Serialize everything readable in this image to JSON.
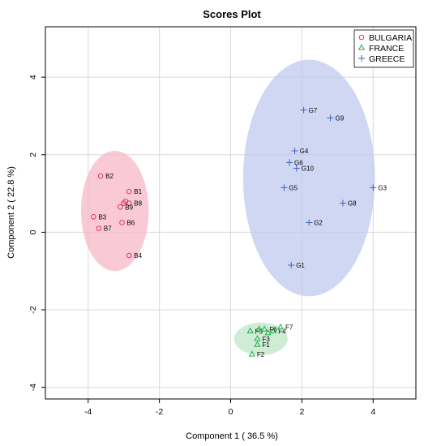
{
  "chart_data": {
    "type": "scatter",
    "title": "Scores Plot",
    "xlabel": "Component 1 ( 36.5 %)",
    "ylabel": "Component 2 ( 22.8 %)",
    "xlim": [
      -5.2,
      5.2
    ],
    "ylim": [
      -4.3,
      5.3
    ],
    "xticks": [
      -4,
      -2,
      0,
      2,
      4
    ],
    "yticks": [
      -4,
      -2,
      0,
      2,
      4
    ],
    "grid": true,
    "legend_position": "top-right",
    "series": [
      {
        "name": "BULGARIA",
        "marker": "circle",
        "color": "#e8305f",
        "ellipse_fill": "#f7b8c8",
        "ellipse": {
          "cx": -3.25,
          "cy": 0.55,
          "rx": 0.95,
          "ry": 1.55
        },
        "points": [
          {
            "label": "B1",
            "x": -2.85,
            "y": 1.05
          },
          {
            "label": "B2",
            "x": -3.65,
            "y": 1.45
          },
          {
            "label": "B3",
            "x": -3.85,
            "y": 0.4
          },
          {
            "label": "B4",
            "x": -2.85,
            "y": -0.6
          },
          {
            "label": "B6",
            "x": -3.05,
            "y": 0.25
          },
          {
            "label": "B7",
            "x": -3.7,
            "y": 0.1
          },
          {
            "label": "B8",
            "x": -2.85,
            "y": 0.75
          },
          {
            "label": "B9",
            "x": -3.1,
            "y": 0.65
          },
          {
            "label": "",
            "x": -2.95,
            "y": 0.8
          },
          {
            "label": "",
            "x": -3.0,
            "y": 0.75
          }
        ]
      },
      {
        "name": "FRANCE",
        "marker": "triangle",
        "color": "#22b04b",
        "ellipse_fill": "#bfe6c5",
        "ellipse": {
          "cx": 0.85,
          "cy": -2.75,
          "rx": 0.75,
          "ry": 0.42
        },
        "points": [
          {
            "label": "F1",
            "x": 0.75,
            "y": -2.9
          },
          {
            "label": "F2",
            "x": 0.6,
            "y": -3.15
          },
          {
            "label": "F3",
            "x": 0.75,
            "y": -2.75
          },
          {
            "label": "F4",
            "x": 1.2,
            "y": -2.55
          },
          {
            "label": "F5",
            "x": 0.55,
            "y": -2.55
          },
          {
            "label": "F6",
            "x": 0.95,
            "y": -2.5
          },
          {
            "label": "F7",
            "x": 1.4,
            "y": -2.45
          },
          {
            "label": "",
            "x": 0.8,
            "y": -2.5
          },
          {
            "label": "",
            "x": 1.05,
            "y": -2.6
          }
        ]
      },
      {
        "name": "GREECE",
        "marker": "plus",
        "color": "#3e68b8",
        "ellipse_fill": "#bfc9ef",
        "ellipse": {
          "cx": 2.2,
          "cy": 1.4,
          "rx": 1.85,
          "ry": 3.05
        },
        "points": [
          {
            "label": "G1",
            "x": 1.7,
            "y": -0.85
          },
          {
            "label": "G2",
            "x": 2.2,
            "y": 0.25
          },
          {
            "label": "G3",
            "x": 4.0,
            "y": 1.15
          },
          {
            "label": "G4",
            "x": 1.8,
            "y": 2.1
          },
          {
            "label": "G5",
            "x": 1.5,
            "y": 1.15
          },
          {
            "label": "G6",
            "x": 1.65,
            "y": 1.8
          },
          {
            "label": "G7",
            "x": 2.05,
            "y": 3.15
          },
          {
            "label": "G8",
            "x": 3.15,
            "y": 0.75
          },
          {
            "label": "G9",
            "x": 2.8,
            "y": 2.95
          },
          {
            "label": "G10",
            "x": 1.85,
            "y": 1.65
          }
        ]
      }
    ]
  }
}
